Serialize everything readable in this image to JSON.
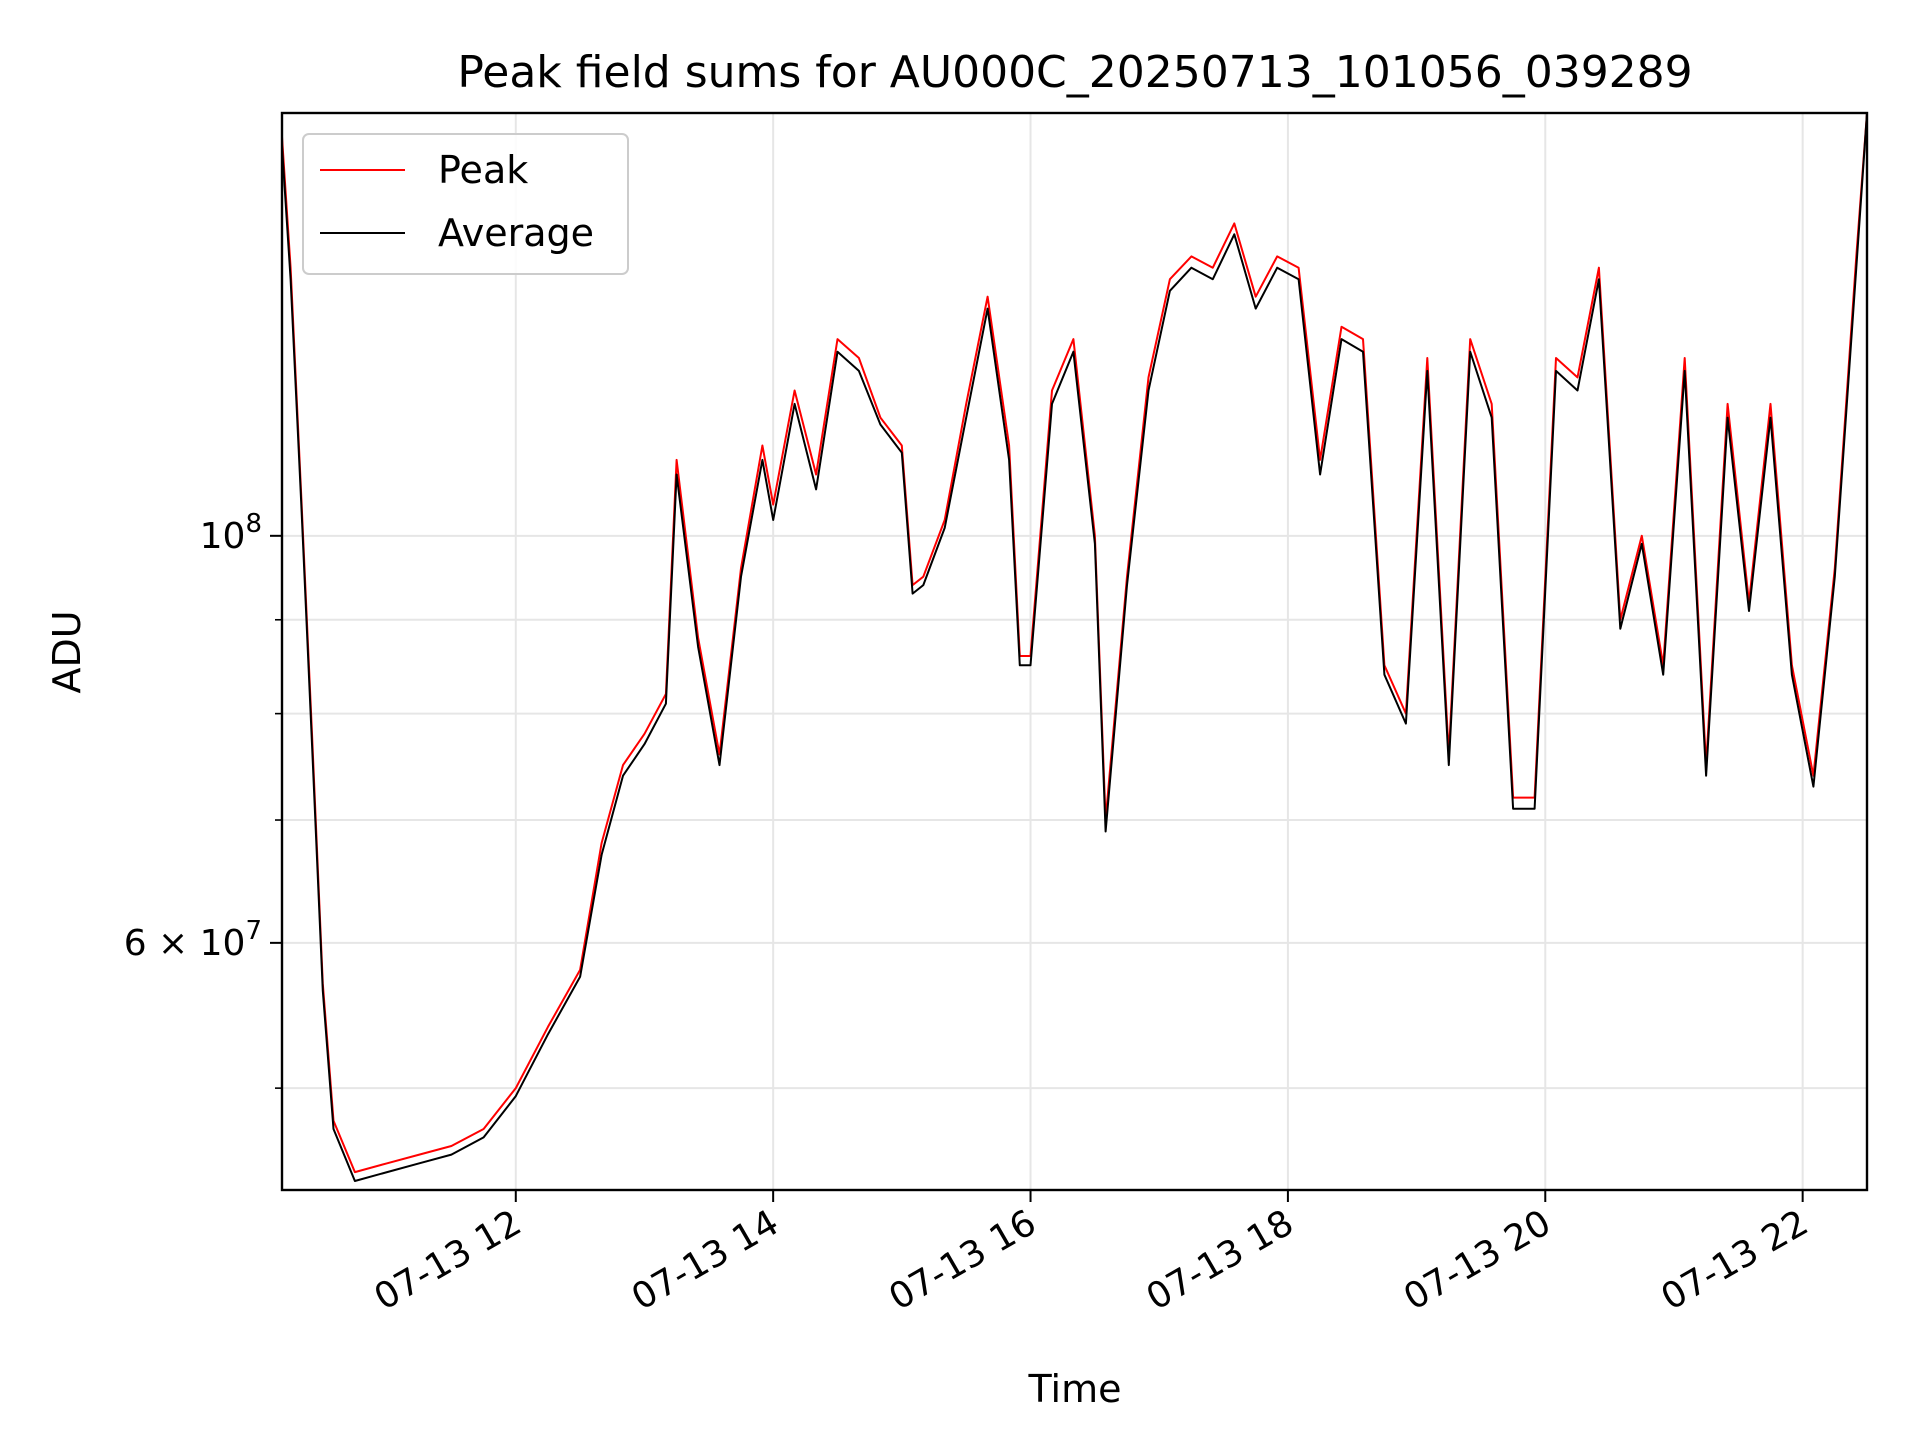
{
  "chart_data": {
    "type": "line",
    "title": "Peak field sums for AU000C_20250713_101056_039289",
    "xlabel": "Time",
    "ylabel": "ADU",
    "yscale": "log",
    "ylim": [
      44000000,
      170000000
    ],
    "xlim": [
      "2025-07-13 10:11",
      "2025-07-13 22:30"
    ],
    "x_ticks": [
      {
        "t": "2025-07-13 12:00",
        "label": "07-13 12"
      },
      {
        "t": "2025-07-13 14:00",
        "label": "07-13 14"
      },
      {
        "t": "2025-07-13 16:00",
        "label": "07-13 16"
      },
      {
        "t": "2025-07-13 18:00",
        "label": "07-13 18"
      },
      {
        "t": "2025-07-13 20:00",
        "label": "07-13 20"
      },
      {
        "t": "2025-07-13 22:00",
        "label": "07-13 22"
      }
    ],
    "y_ticks_major": [
      {
        "v": 100000000,
        "base": "10",
        "exp": "8"
      },
      {
        "v": 60000000,
        "base": "6 × 10",
        "exp": "7"
      }
    ],
    "y_ticks_minor": [
      50000000,
      70000000,
      80000000,
      90000000
    ],
    "grid": true,
    "legend": "top-left",
    "series": [
      {
        "name": "Peak",
        "color": "#ff0000",
        "x": [
          "2025-07-13 10:11",
          "2025-07-13 10:15",
          "2025-07-13 10:20",
          "2025-07-13 10:25",
          "2025-07-13 10:30",
          "2025-07-13 10:35",
          "2025-07-13 10:45",
          "2025-07-13 11:00",
          "2025-07-13 11:15",
          "2025-07-13 11:30",
          "2025-07-13 11:45",
          "2025-07-13 12:00",
          "2025-07-13 12:15",
          "2025-07-13 12:30",
          "2025-07-13 12:40",
          "2025-07-13 12:50",
          "2025-07-13 13:00",
          "2025-07-13 13:10",
          "2025-07-13 13:15",
          "2025-07-13 13:25",
          "2025-07-13 13:35",
          "2025-07-13 13:45",
          "2025-07-13 13:55",
          "2025-07-13 14:00",
          "2025-07-13 14:10",
          "2025-07-13 14:20",
          "2025-07-13 14:30",
          "2025-07-13 14:40",
          "2025-07-13 14:50",
          "2025-07-13 15:00",
          "2025-07-13 15:05",
          "2025-07-13 15:10",
          "2025-07-13 15:20",
          "2025-07-13 15:30",
          "2025-07-13 15:40",
          "2025-07-13 15:50",
          "2025-07-13 15:55",
          "2025-07-13 16:00",
          "2025-07-13 16:10",
          "2025-07-13 16:20",
          "2025-07-13 16:30",
          "2025-07-13 16:35",
          "2025-07-13 16:45",
          "2025-07-13 16:55",
          "2025-07-13 17:05",
          "2025-07-13 17:15",
          "2025-07-13 17:25",
          "2025-07-13 17:35",
          "2025-07-13 17:45",
          "2025-07-13 17:55",
          "2025-07-13 18:05",
          "2025-07-13 18:15",
          "2025-07-13 18:25",
          "2025-07-13 18:35",
          "2025-07-13 18:45",
          "2025-07-13 18:55",
          "2025-07-13 19:05",
          "2025-07-13 19:15",
          "2025-07-13 19:25",
          "2025-07-13 19:35",
          "2025-07-13 19:45",
          "2025-07-13 19:55",
          "2025-07-13 20:05",
          "2025-07-13 20:15",
          "2025-07-13 20:25",
          "2025-07-13 20:35",
          "2025-07-13 20:45",
          "2025-07-13 20:55",
          "2025-07-13 21:05",
          "2025-07-13 21:15",
          "2025-07-13 21:25",
          "2025-07-13 21:35",
          "2025-07-13 21:45",
          "2025-07-13 21:55",
          "2025-07-13 22:05",
          "2025-07-13 22:15",
          "2025-07-13 22:25",
          "2025-07-13 22:30"
        ],
        "y": [
          165000000,
          140000000,
          105000000,
          78000000,
          57000000,
          48000000,
          45000000,
          45500000,
          46000000,
          46500000,
          47500000,
          50000000,
          54000000,
          58000000,
          68000000,
          75000000,
          78000000,
          82000000,
          110000000,
          88000000,
          76000000,
          96000000,
          112000000,
          104000000,
          120000000,
          108000000,
          128000000,
          125000000,
          116000000,
          112000000,
          94000000,
          95000000,
          102000000,
          118000000,
          135000000,
          112000000,
          86000000,
          86000000,
          120000000,
          128000000,
          100000000,
          70000000,
          95000000,
          122000000,
          138000000,
          142000000,
          140000000,
          148000000,
          135000000,
          142000000,
          140000000,
          110000000,
          130000000,
          128000000,
          85000000,
          80000000,
          125000000,
          76000000,
          128000000,
          118000000,
          72000000,
          72000000,
          125000000,
          122000000,
          140000000,
          90000000,
          100000000,
          85000000,
          125000000,
          75000000,
          118000000,
          92000000,
          118000000,
          85000000,
          74000000,
          96000000,
          142000000,
          172000000
        ]
      },
      {
        "name": "Average",
        "color": "#000000",
        "x": [
          "2025-07-13 10:11",
          "2025-07-13 10:15",
          "2025-07-13 10:20",
          "2025-07-13 10:25",
          "2025-07-13 10:30",
          "2025-07-13 10:35",
          "2025-07-13 10:45",
          "2025-07-13 11:00",
          "2025-07-13 11:15",
          "2025-07-13 11:30",
          "2025-07-13 11:45",
          "2025-07-13 12:00",
          "2025-07-13 12:15",
          "2025-07-13 12:30",
          "2025-07-13 12:40",
          "2025-07-13 12:50",
          "2025-07-13 13:00",
          "2025-07-13 13:10",
          "2025-07-13 13:15",
          "2025-07-13 13:25",
          "2025-07-13 13:35",
          "2025-07-13 13:45",
          "2025-07-13 13:55",
          "2025-07-13 14:00",
          "2025-07-13 14:10",
          "2025-07-13 14:20",
          "2025-07-13 14:30",
          "2025-07-13 14:40",
          "2025-07-13 14:50",
          "2025-07-13 15:00",
          "2025-07-13 15:05",
          "2025-07-13 15:10",
          "2025-07-13 15:20",
          "2025-07-13 15:30",
          "2025-07-13 15:40",
          "2025-07-13 15:50",
          "2025-07-13 15:55",
          "2025-07-13 16:00",
          "2025-07-13 16:10",
          "2025-07-13 16:20",
          "2025-07-13 16:30",
          "2025-07-13 16:35",
          "2025-07-13 16:45",
          "2025-07-13 16:55",
          "2025-07-13 17:05",
          "2025-07-13 17:15",
          "2025-07-13 17:25",
          "2025-07-13 17:35",
          "2025-07-13 17:45",
          "2025-07-13 17:55",
          "2025-07-13 18:05",
          "2025-07-13 18:15",
          "2025-07-13 18:25",
          "2025-07-13 18:35",
          "2025-07-13 18:45",
          "2025-07-13 18:55",
          "2025-07-13 19:05",
          "2025-07-13 19:15",
          "2025-07-13 19:25",
          "2025-07-13 19:35",
          "2025-07-13 19:45",
          "2025-07-13 19:55",
          "2025-07-13 20:05",
          "2025-07-13 20:15",
          "2025-07-13 20:25",
          "2025-07-13 20:35",
          "2025-07-13 20:45",
          "2025-07-13 20:55",
          "2025-07-13 21:05",
          "2025-07-13 21:15",
          "2025-07-13 21:25",
          "2025-07-13 21:35",
          "2025-07-13 21:45",
          "2025-07-13 21:55",
          "2025-07-13 22:05",
          "2025-07-13 22:15",
          "2025-07-13 22:25",
          "2025-07-13 22:30"
        ],
        "y": [
          163000000,
          138000000,
          104000000,
          77000000,
          56500000,
          47500000,
          44500000,
          45000000,
          45500000,
          46000000,
          47000000,
          49500000,
          53500000,
          57500000,
          67000000,
          74000000,
          77000000,
          81000000,
          108000000,
          87000000,
          75000000,
          95000000,
          110000000,
          102000000,
          118000000,
          106000000,
          126000000,
          123000000,
          115000000,
          111000000,
          93000000,
          94000000,
          101000000,
          116000000,
          133000000,
          110000000,
          85000000,
          85000000,
          118000000,
          126000000,
          99000000,
          69000000,
          94000000,
          120000000,
          136000000,
          140000000,
          138000000,
          146000000,
          133000000,
          140000000,
          138000000,
          108000000,
          128000000,
          126000000,
          84000000,
          79000000,
          123000000,
          75000000,
          126000000,
          116000000,
          71000000,
          71000000,
          123000000,
          120000000,
          138000000,
          89000000,
          99000000,
          84000000,
          123000000,
          74000000,
          116000000,
          91000000,
          116000000,
          84000000,
          73000000,
          95000000,
          140000000,
          170000000
        ]
      }
    ]
  }
}
